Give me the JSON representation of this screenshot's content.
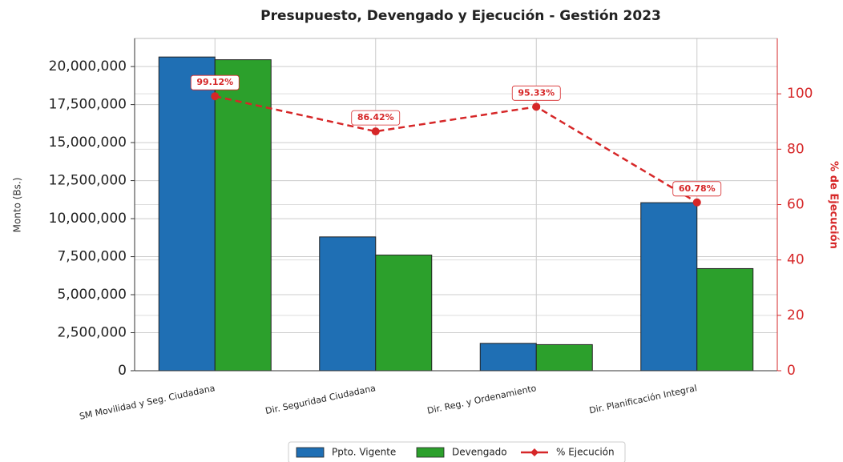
{
  "chart_data": {
    "type": "bar_line",
    "title": "Presupuesto, Devengado y Ejecución - Gestión 2023",
    "ylabel": "Monto (Bs.)",
    "y2label": "% de Ejecución",
    "categories": [
      "SM Movilidad y Seg. Ciudadana",
      "Dir. Seguridad Ciudadana",
      "Dir. Reg. y Ordenamiento",
      "Dir. Planificación Integral"
    ],
    "series": [
      {
        "name": "Ppto. Vigente",
        "color": "#1f6fb4",
        "values": [
          20630000,
          8800000,
          1800000,
          11050000
        ]
      },
      {
        "name": "Devengado",
        "color": "#2ca02c",
        "values": [
          20450000,
          7605000,
          1716000,
          6716000
        ]
      },
      {
        "name": "% Ejecución",
        "color": "#d62728",
        "axis": "y2",
        "values": [
          99.12,
          86.42,
          95.33,
          60.78
        ],
        "value_labels": [
          "99.12%",
          "86.42%",
          "95.33%",
          "60.78%"
        ]
      }
    ],
    "ylim": [
      0,
      21850000
    ],
    "yticks": [
      0,
      {
        "value": 2500000,
        "label": "2,500,000"
      },
      {
        "value": 5000000,
        "label": "5,000,000"
      },
      {
        "value": 7500000,
        "label": "7,500,000"
      },
      {
        "value": 10000000,
        "label": "10,000,000"
      },
      {
        "value": 12500000,
        "label": "12,500,000"
      },
      {
        "value": 15000000,
        "label": "15,000,000"
      },
      {
        "value": 17500000,
        "label": "17,500,000"
      },
      {
        "value": 20000000,
        "label": "20,000,000"
      }
    ],
    "y2lim": [
      0,
      120
    ],
    "y2ticks": [
      0,
      20,
      40,
      60,
      80,
      100
    ],
    "grid": true,
    "legend": "bottom"
  }
}
